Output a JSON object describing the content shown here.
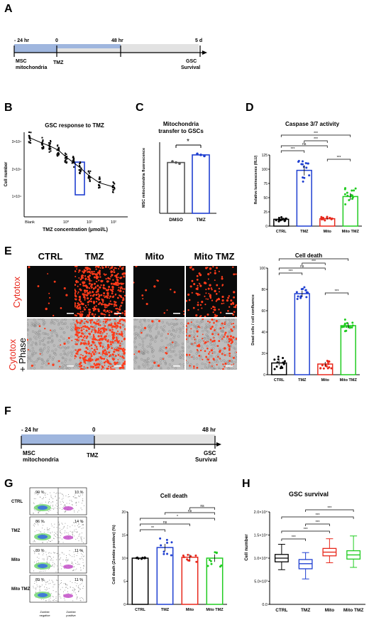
{
  "panels": {
    "A": "A",
    "B": "B",
    "C": "C",
    "D": "D",
    "E": "E",
    "F": "F",
    "G": "G",
    "H": "H"
  },
  "timelineA": {
    "t1": "- 24 hr",
    "t2": "0",
    "t3": "48 hr",
    "t4": "5 d",
    "l1": "MSC",
    "l2": "mitochondria",
    "l3": "TMZ",
    "l4": "GSC",
    "l5": "Survival"
  },
  "timelineF": {
    "t1": "- 24 hr",
    "t2": "0",
    "t3": "48 hr",
    "l1": "MSC",
    "l2": "mitochondria",
    "l3": "TMZ",
    "l4": "GSC",
    "l5": "Survival"
  },
  "panelB": {
    "title": "GSC response to TMZ",
    "xlabel": "TMZ concentration (µmol/L)",
    "ylabel": "Cell number",
    "xticks": [
      "Blank",
      "10⁰",
      "10¹",
      "10²"
    ],
    "yticks": [
      "1×10⁴",
      "2×10⁴",
      "3×10⁴"
    ]
  },
  "panelC": {
    "title1": "Mitochondria",
    "title2": "transfer to GSCs",
    "ylabel": "MSC mitochondria fluorescence",
    "cats": [
      "DMSO",
      "TMZ"
    ],
    "sig": "*"
  },
  "panelD": {
    "title": "Caspase 3/7 activity",
    "ylabel": "Relative luminescence (RLU)",
    "cats": [
      "CTRL",
      "TMZ",
      "Mito",
      "Mito TMZ"
    ],
    "yticks": [
      "0",
      "25",
      "50",
      "75",
      "100",
      "125"
    ]
  },
  "panelE": {
    "cols": [
      "CTRL",
      "TMZ",
      "Mito",
      "Mito TMZ"
    ],
    "row1": "Cytotox",
    "row2a": "Cytotox",
    "row2b": "+ Phase",
    "chartTitle": "Cell death",
    "ylabel": "Dead cells / cell confluence",
    "cats": [
      "CTRL",
      "TMZ",
      "Mito",
      "Mito TMZ"
    ],
    "yticks": [
      "0",
      "20",
      "40",
      "60",
      "80",
      "100"
    ]
  },
  "panelG": {
    "rows": [
      "CTRL",
      "TMZ",
      "Mito",
      "Mito TMZ"
    ],
    "left": [
      "90 %",
      "86 %",
      "89 %",
      "89 %"
    ],
    "right": [
      "10 %",
      "14 %",
      "11 %",
      "11 %"
    ],
    "xl1": "Zombie",
    "xl1b": "negative",
    "xl2": "Zombie",
    "xl2b": "positive",
    "chartTitle": "Cell death",
    "ylabel": "Cell death (Zombie positive) (%)",
    "cats": [
      "CTRL",
      "TMZ",
      "Mito",
      "Mito TMZ"
    ],
    "yticks": [
      "0",
      "5",
      "10",
      "15",
      "20"
    ]
  },
  "panelH": {
    "title": "GSC survival",
    "ylabel": "Cell number",
    "cats": [
      "CTRL",
      "TMZ",
      "Mito",
      "Mito TMZ"
    ],
    "yticks": [
      "0.0",
      "5.0×10³",
      "1.0×10⁴",
      "1.5×10⁴",
      "2.0×10⁴"
    ]
  },
  "chart_data": [
    {
      "type": "scatter",
      "title": "GSC response to TMZ",
      "xlabel": "TMZ concentration (µmol/L)",
      "ylabel": "Cell number",
      "x": [
        0,
        1,
        2,
        5,
        10,
        20,
        50,
        100,
        200,
        400
      ],
      "y": [
        29000,
        27000,
        26000,
        24500,
        22000,
        20000,
        18000,
        15000,
        12500,
        11000
      ]
    },
    {
      "type": "bar",
      "title": "Mitochondria transfer to GSCs",
      "ylabel": "MSC mitochondria fluorescence",
      "categories": [
        "DMSO",
        "TMZ"
      ],
      "values": [
        1000,
        1150
      ]
    },
    {
      "type": "bar",
      "title": "Caspase 3/7 activity",
      "ylabel": "Relative luminescence (RLU)",
      "categories": [
        "CTRL",
        "TMZ",
        "Mito",
        "Mito TMZ"
      ],
      "values": [
        12,
        98,
        13,
        52
      ],
      "ylim": [
        0,
        150
      ]
    },
    {
      "type": "bar",
      "title": "Cell death",
      "ylabel": "Dead cells / cell confluence",
      "categories": [
        "CTRL",
        "TMZ",
        "Mito",
        "Mito TMZ"
      ],
      "values": [
        11,
        76,
        10,
        46
      ],
      "ylim": [
        0,
        100
      ]
    },
    {
      "type": "bar",
      "title": "Cell death",
      "ylabel": "Cell death (Zombie positive) (%)",
      "categories": [
        "CTRL",
        "TMZ",
        "Mito",
        "Mito TMZ"
      ],
      "values": [
        10,
        12.3,
        10.2,
        10
      ],
      "ylim": [
        0,
        20
      ]
    },
    {
      "type": "box",
      "title": "GSC survival",
      "ylabel": "Cell number",
      "categories": [
        "CTRL",
        "TMZ",
        "Mito",
        "Mito TMZ"
      ],
      "medians": [
        10000,
        8800,
        11300,
        10700
      ],
      "q1": [
        9200,
        7700,
        10500,
        9800
      ],
      "q3": [
        10800,
        9700,
        12100,
        11600
      ],
      "min": [
        7500,
        5500,
        9000,
        8000
      ],
      "max": [
        13000,
        11200,
        14200,
        14800
      ],
      "ylim": [
        0,
        20000
      ]
    }
  ],
  "colors": {
    "ctrl": "#000000",
    "tmz": "#1f3fd1",
    "mito": "#e8281c",
    "mitotmz": "#20cc20",
    "timeline": "#9fb6de"
  }
}
